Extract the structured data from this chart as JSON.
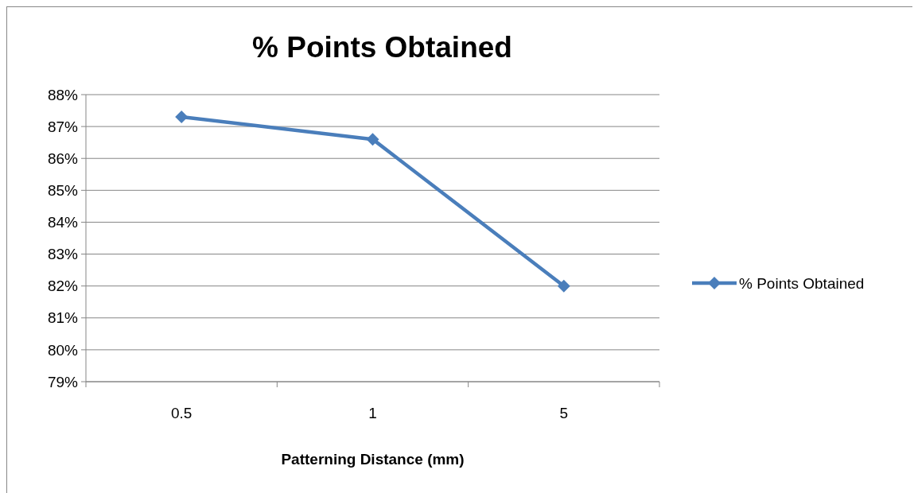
{
  "chart_data": {
    "type": "line",
    "title": "% Points Obtained",
    "xlabel": "Patterning Distance (mm)",
    "categories": [
      "0.5",
      "1",
      "5"
    ],
    "series": [
      {
        "name": "% Points Obtained",
        "color": "#4a7ebb",
        "values": [
          87.3,
          86.6,
          82.0
        ]
      }
    ],
    "ylim": [
      79,
      88
    ],
    "yticks": [
      {
        "value": 79,
        "label": "79%"
      },
      {
        "value": 80,
        "label": "80%"
      },
      {
        "value": 81,
        "label": "81%"
      },
      {
        "value": 82,
        "label": "82%"
      },
      {
        "value": 83,
        "label": "83%"
      },
      {
        "value": 84,
        "label": "84%"
      },
      {
        "value": 85,
        "label": "85%"
      },
      {
        "value": 86,
        "label": "86%"
      },
      {
        "value": 87,
        "label": "87%"
      },
      {
        "value": 88,
        "label": "88%"
      }
    ],
    "grid": "y",
    "legend": "right",
    "marker": "diamond",
    "line_style": "solid"
  }
}
